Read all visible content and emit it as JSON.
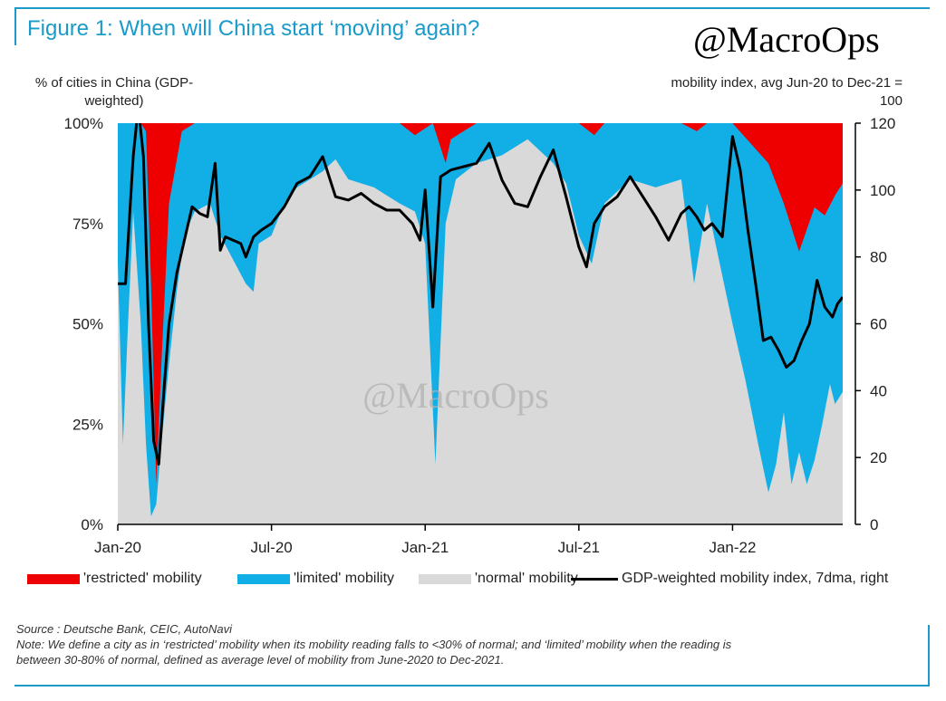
{
  "title": "Figure 1: When will China start ‘moving’ again?",
  "watermark": "@MacroOps",
  "colors": {
    "restricted": "#ee0000",
    "limited": "#12aee6",
    "normal": "#d9d9d9",
    "index": "#000000",
    "accent": "#1a9ac9"
  },
  "chart_data": {
    "type": "area",
    "title": "Figure 1: When will China start ‘moving’ again?",
    "ylabel_left": "% of cities in China (GDP-weighted)",
    "ylabel_right": "mobility index, avg Jun-20 to Dec-21 = 100",
    "ylim_left": [
      0,
      100
    ],
    "ylim_right": [
      0,
      120
    ],
    "yticks_left": [
      "0%",
      "25%",
      "50%",
      "75%",
      "100%"
    ],
    "yticks_right": [
      "0",
      "20",
      "40",
      "60",
      "80",
      "100",
      "120"
    ],
    "x_ticks": [
      "Jan-20",
      "Jul-20",
      "Jan-21",
      "Jul-21",
      "Jan-22"
    ],
    "x_range_months": [
      0,
      28.3
    ],
    "legend": [
      "'restricted' mobility",
      "'limited' mobility",
      "'normal' mobility",
      "GDP-weighted mobility index, 7dma, right"
    ],
    "series": [
      {
        "name": "'restricted' mobility (upper bound of normal+limited, %)",
        "x": [
          0,
          0.5,
          0.9,
          1.1,
          1.3,
          1.5,
          1.7,
          2.0,
          2.5,
          3,
          4,
          5,
          6,
          7,
          8,
          9,
          11,
          11.6,
          12.3,
          12.8,
          13,
          14,
          16,
          17,
          18,
          18.6,
          19,
          20,
          21,
          22,
          22.6,
          23,
          24,
          25.4,
          26,
          26.6,
          27.2,
          27.6,
          28,
          28.3
        ],
        "values": [
          100,
          100,
          100,
          98,
          60,
          10,
          40,
          80,
          98,
          100,
          100,
          100,
          100,
          100,
          100,
          100,
          100,
          97,
          100,
          90,
          96,
          100,
          100,
          100,
          100,
          97,
          100,
          100,
          100,
          100,
          98,
          100,
          100,
          90,
          80,
          68,
          79,
          77,
          82,
          85
        ]
      },
      {
        "name": "'normal' mobility (%)",
        "x": [
          0,
          0.2,
          0.4,
          0.6,
          0.9,
          1.1,
          1.3,
          1.5,
          1.7,
          2.0,
          2.3,
          2.6,
          3.0,
          3.6,
          4.0,
          4.5,
          5.0,
          5.3,
          5.5,
          6,
          6.5,
          7,
          8,
          8.5,
          9,
          10,
          10.5,
          11,
          11.6,
          12.0,
          12.4,
          12.8,
          13.2,
          14,
          15,
          16,
          17,
          17.5,
          18,
          18.5,
          19,
          20,
          21,
          22,
          22.5,
          23,
          24,
          24.5,
          25,
          25.4,
          25.7,
          26,
          26.3,
          26.6,
          26.9,
          27.2,
          27.5,
          27.8,
          28.0,
          28.3
        ],
        "values": [
          65,
          20,
          50,
          78,
          50,
          20,
          2,
          5,
          20,
          40,
          58,
          72,
          78,
          80,
          72,
          66,
          60,
          58,
          70,
          72,
          80,
          84,
          88,
          91,
          86,
          84,
          82,
          80,
          78,
          70,
          15,
          75,
          86,
          90,
          92,
          96,
          90,
          85,
          72,
          65,
          80,
          86,
          84,
          86,
          60,
          80,
          50,
          36,
          20,
          8,
          15,
          28,
          10,
          18,
          10,
          16,
          25,
          35,
          30,
          33
        ]
      },
      {
        "name": "GDP-weighted mobility index, 7dma, right",
        "x": [
          0,
          0.3,
          0.6,
          0.8,
          1.0,
          1.2,
          1.4,
          1.6,
          1.8,
          2.0,
          2.3,
          2.6,
          2.9,
          3.2,
          3.5,
          3.8,
          4.0,
          4.2,
          4.5,
          4.8,
          5.0,
          5.3,
          5.6,
          6.0,
          6.5,
          7.0,
          7.5,
          8.0,
          8.5,
          9.0,
          9.5,
          10.0,
          10.5,
          11.0,
          11.5,
          11.8,
          12.0,
          12.3,
          12.6,
          13.0,
          13.5,
          14.0,
          14.5,
          15.0,
          15.5,
          16.0,
          16.5,
          17.0,
          17.5,
          18.0,
          18.3,
          18.6,
          19.0,
          19.5,
          20.0,
          20.5,
          21.0,
          21.5,
          22.0,
          22.3,
          22.6,
          22.9,
          23.2,
          23.6,
          24.0,
          24.3,
          24.6,
          24.9,
          25.2,
          25.5,
          25.8,
          26.1,
          26.4,
          26.7,
          27.0,
          27.3,
          27.6,
          27.9,
          28.1,
          28.3
        ],
        "values": [
          72,
          72,
          110,
          125,
          110,
          60,
          25,
          18,
          40,
          60,
          75,
          85,
          95,
          93,
          92,
          108,
          82,
          86,
          85,
          84,
          80,
          86,
          88,
          90,
          95,
          102,
          104,
          110,
          98,
          97,
          99,
          96,
          94,
          94,
          90,
          85,
          100,
          65,
          104,
          106,
          107,
          108,
          114,
          103,
          96,
          95,
          104,
          112,
          98,
          83,
          77,
          90,
          95,
          98,
          104,
          98,
          92,
          85,
          93,
          95,
          92,
          88,
          90,
          86,
          116,
          106,
          88,
          72,
          55,
          56,
          52,
          47,
          49,
          55,
          60,
          73,
          65,
          62,
          66,
          68
        ]
      }
    ]
  },
  "source": "Source : Deutsche Bank, CEIC, AutoNavi",
  "note_line1": "Note: We define a city as in ‘restricted’ mobility when its mobility reading falls to <30% of normal; and ‘limited’ mobility when the reading is",
  "note_line2": "between 30-80% of normal, defined as average level of mobility from June-2020 to Dec-2021."
}
